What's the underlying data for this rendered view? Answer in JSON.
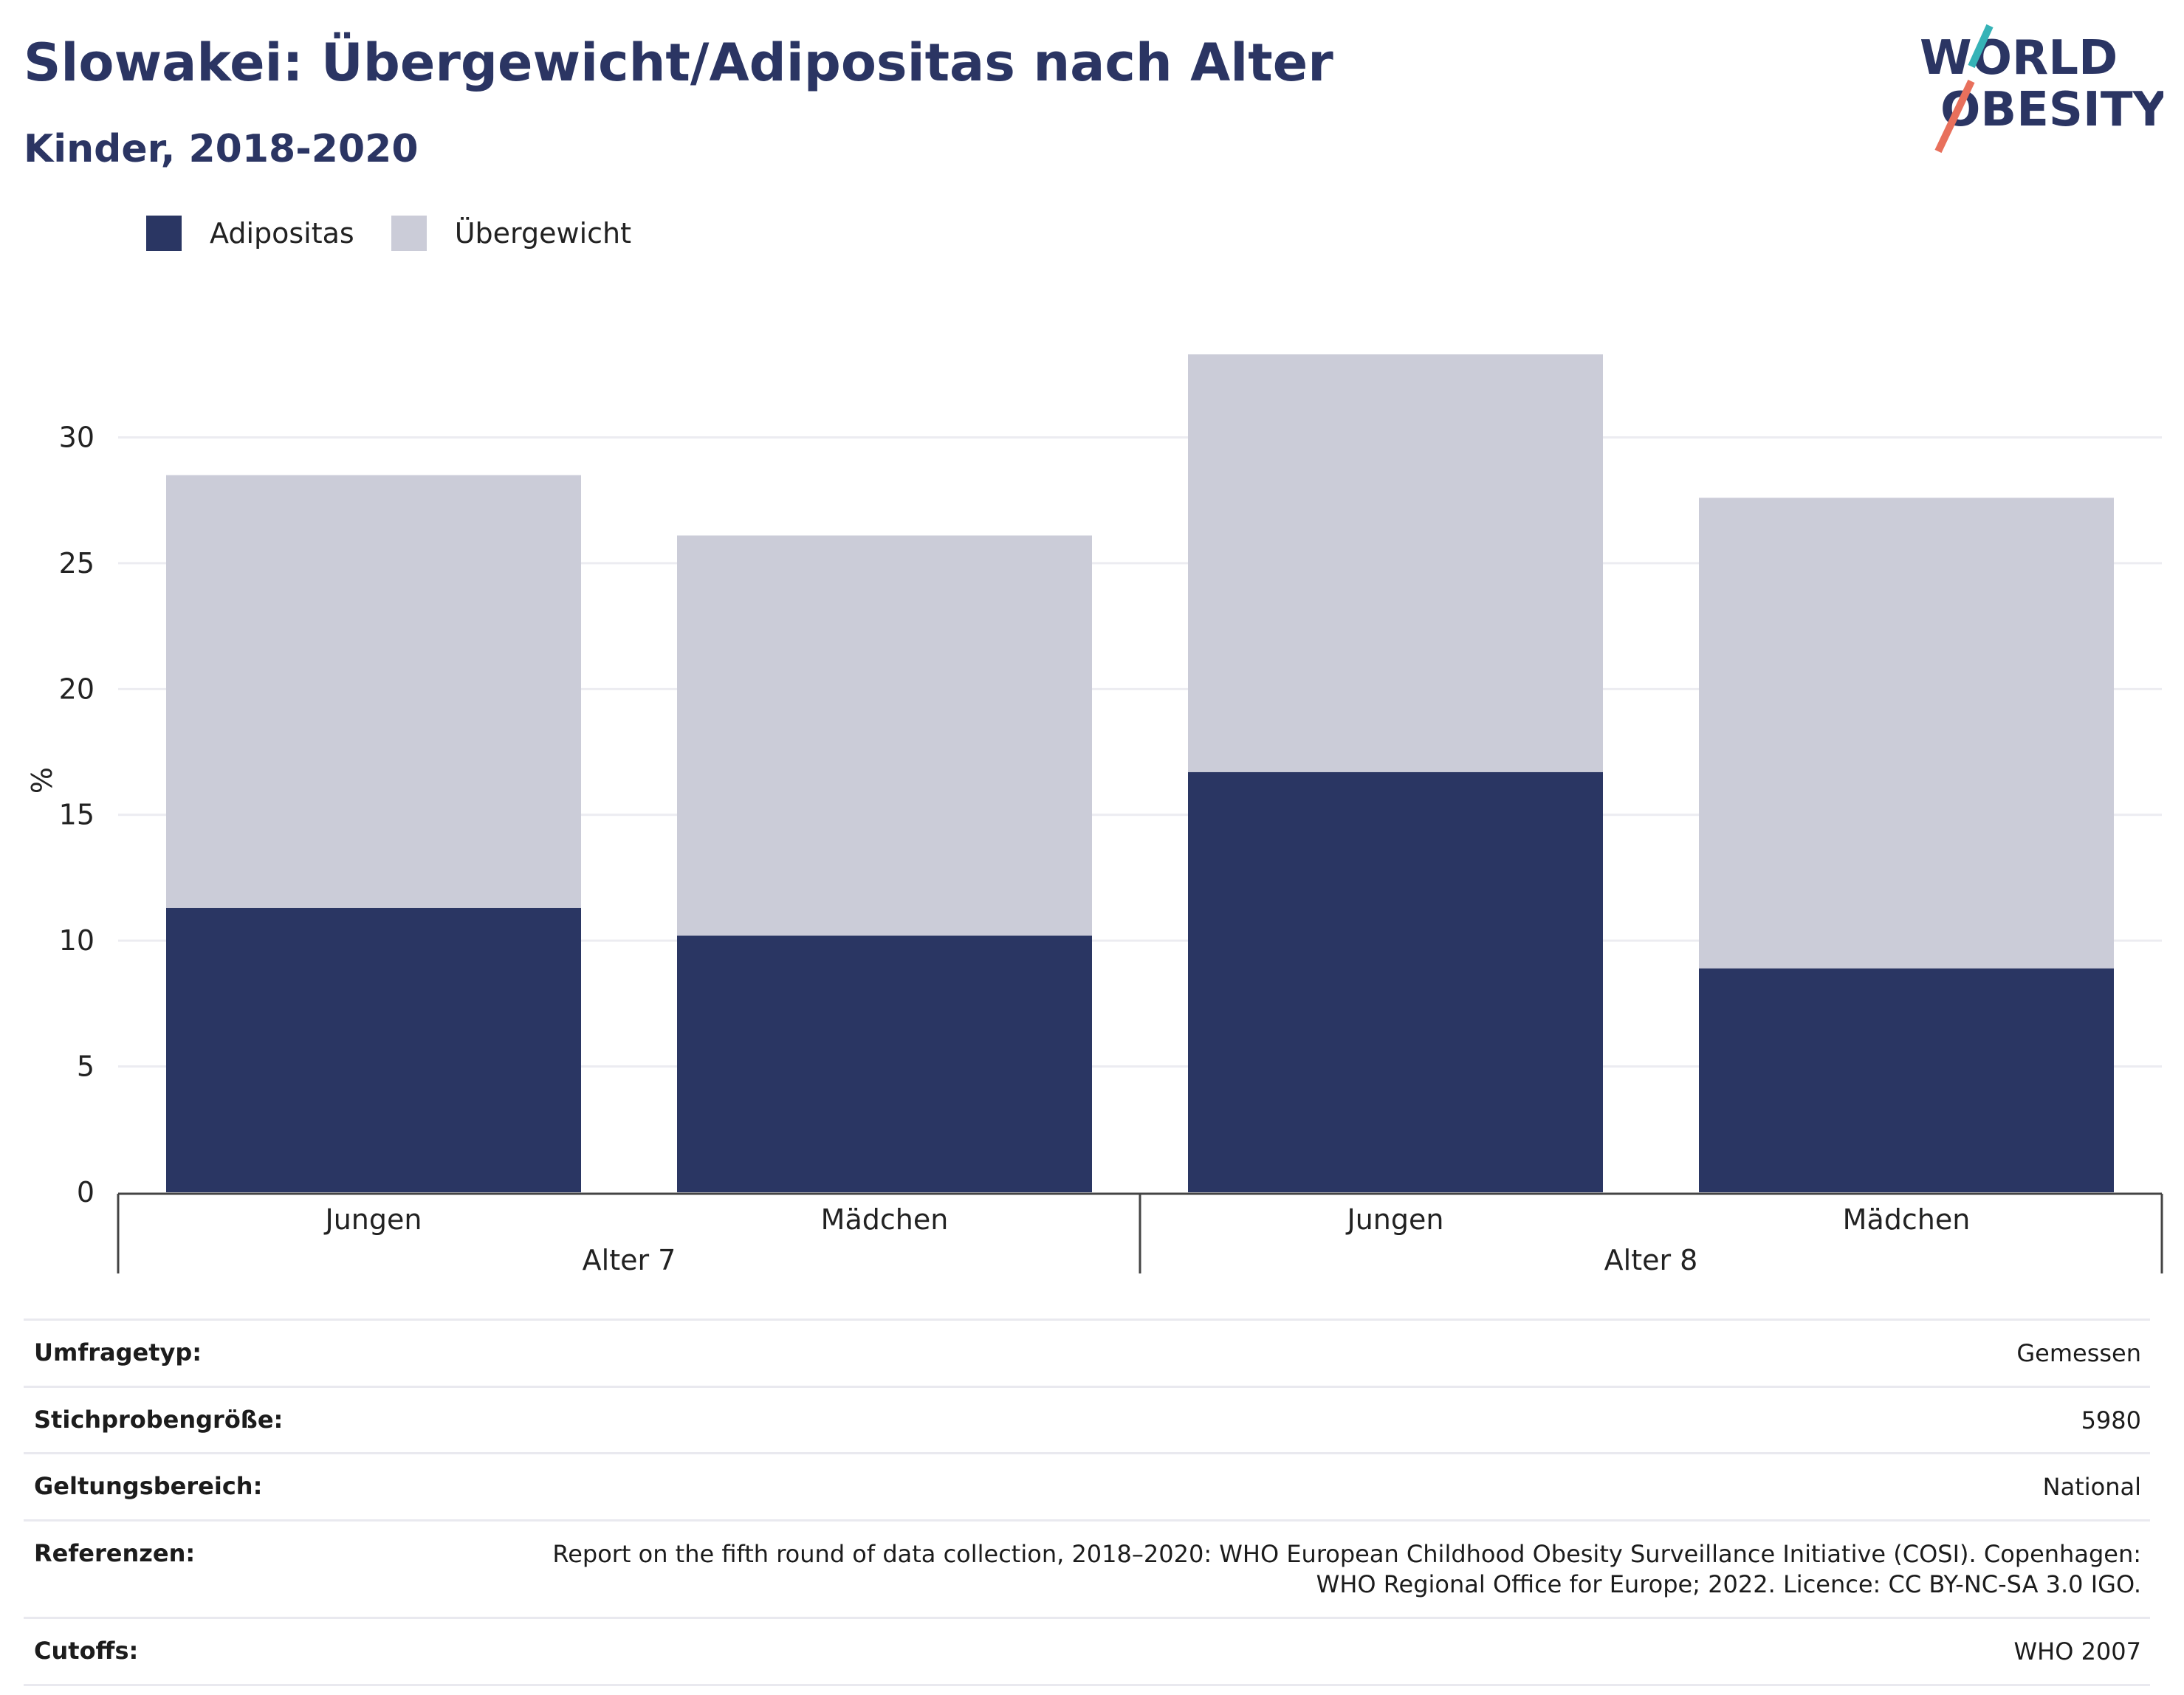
{
  "title": "Slowakei: Übergewicht/Adipositas nach Alter",
  "subtitle": "Kinder, 2018-2020",
  "logo": {
    "line1": "WORLD",
    "line2": "OBESITY"
  },
  "colors": {
    "adipositas": "#2a3663",
    "uebergewicht": "#cbccd8",
    "title": "#2b3563"
  },
  "legend": [
    {
      "label": "Adipositas",
      "color": "#2a3663"
    },
    {
      "label": "Übergewicht",
      "color": "#cbccd8"
    }
  ],
  "chart_data": {
    "type": "bar",
    "stacked": true,
    "ylabel": "%",
    "ylim": [
      0,
      33.3
    ],
    "yticks": [
      0,
      5,
      10,
      15,
      20,
      25,
      30
    ],
    "categories": [
      "Jungen",
      "Mädchen",
      "Jungen",
      "Mädchen"
    ],
    "groups": [
      {
        "label": "Alter 7",
        "categories": [
          0,
          1
        ]
      },
      {
        "label": "Alter 8",
        "categories": [
          2,
          3
        ]
      }
    ],
    "series": [
      {
        "name": "Adipositas",
        "values": [
          11.3,
          10.2,
          16.7,
          8.9
        ]
      },
      {
        "name": "Übergewicht",
        "values": [
          17.2,
          15.9,
          16.7,
          18.7
        ]
      }
    ],
    "grid": true
  },
  "meta": [
    {
      "label": "Umfragetyp:",
      "value": "Gemessen"
    },
    {
      "label": "Stichprobengröße:",
      "value": "5980"
    },
    {
      "label": "Geltungsbereich:",
      "value": "National"
    },
    {
      "label": "Referenzen:",
      "value": "Report on the fifth round of data collection, 2018–2020: WHO European Childhood Obesity Surveillance Initiative (COSI). Copenhagen: WHO Regional Office for Europe; 2022. Licence: CC BY-NC-SA 3.0 IGO."
    },
    {
      "label": "Cutoffs:",
      "value": "WHO 2007"
    }
  ]
}
